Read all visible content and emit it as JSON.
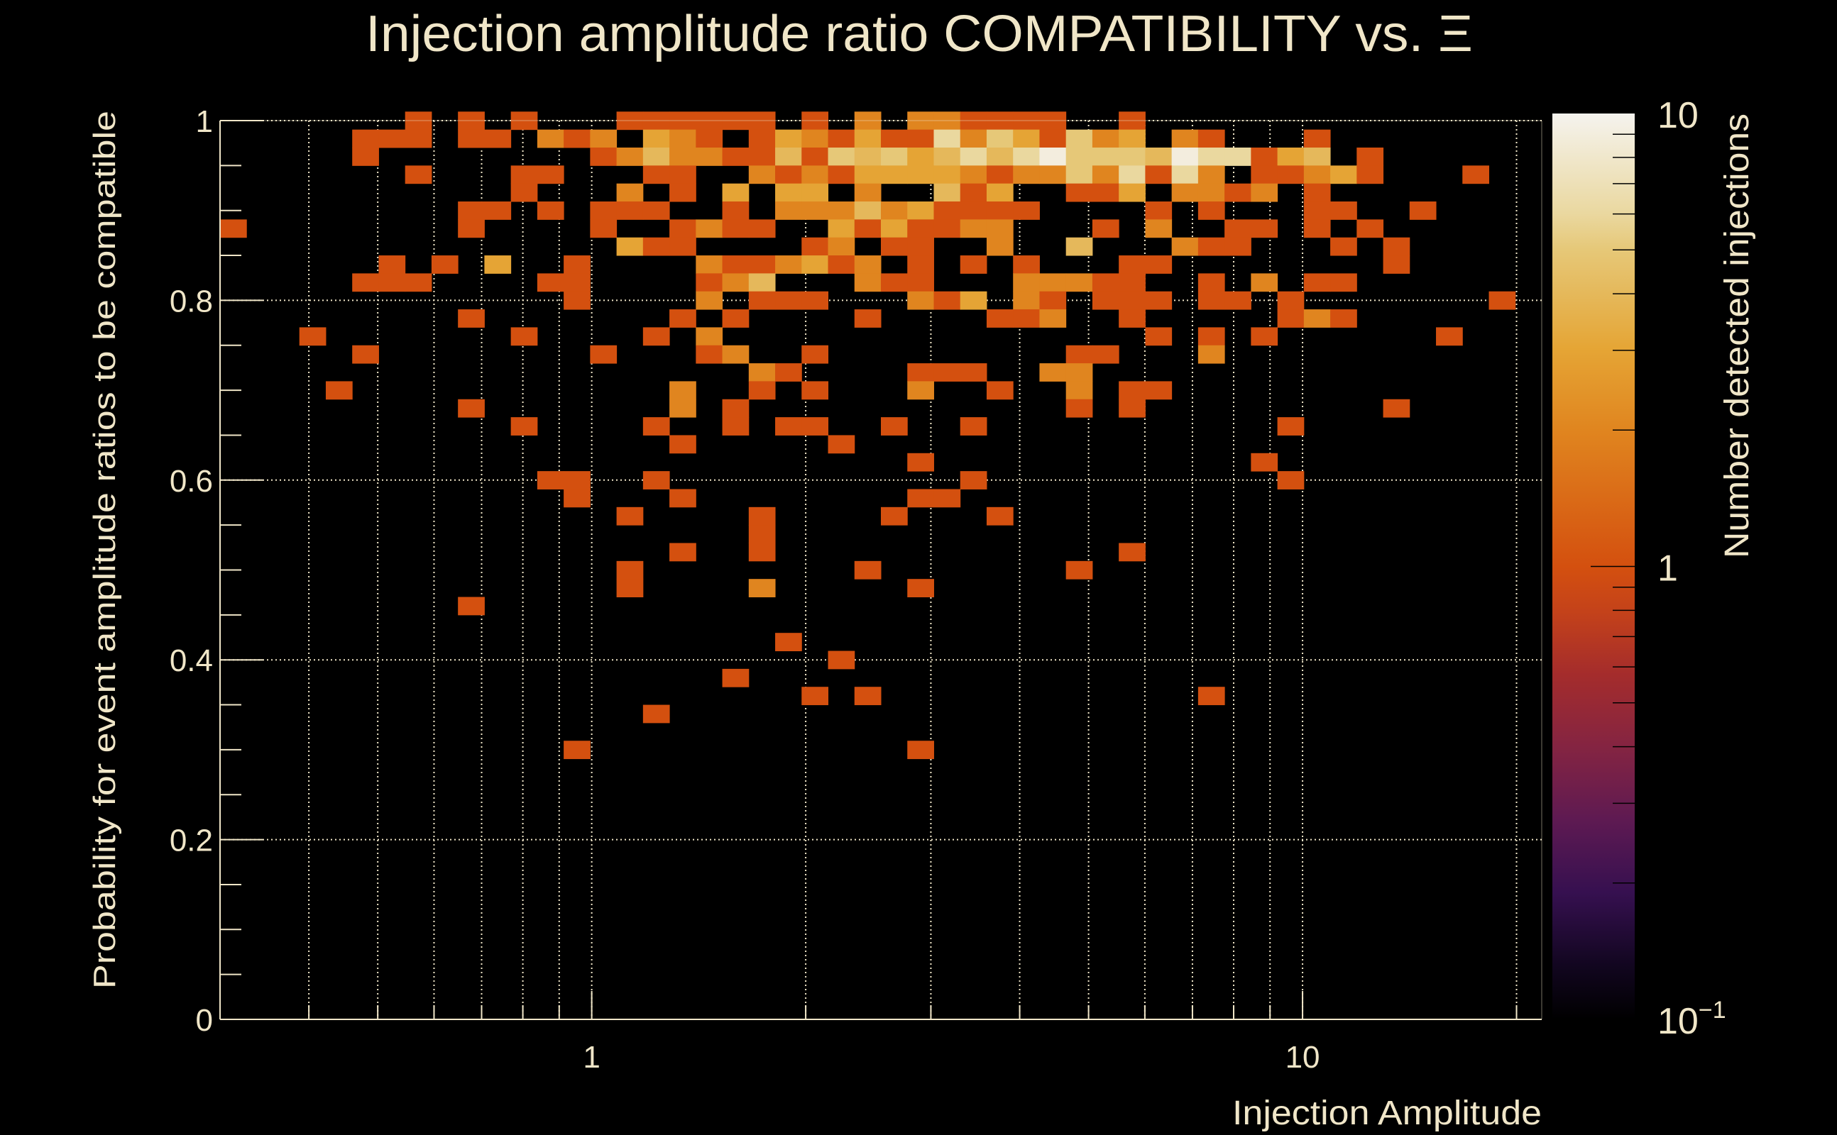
{
  "chart_data": {
    "type": "heatmap",
    "title": "Injection amplitude ratio COMPATIBILITY vs.  Ξ",
    "xlabel": "Injection Amplitude",
    "ylabel": "Probability for event amplitude ratios to be compatible",
    "zlabel": "Number detected injections",
    "x_scale": "log",
    "xlim": [
      0.3,
      21.7
    ],
    "ylim": [
      0,
      1
    ],
    "zlim": [
      0.1,
      10
    ],
    "z_scale": "log",
    "grid": true,
    "x_bins": 50,
    "y_bin_width": 0.02,
    "y_first_bin_center": 1.0,
    "x_tick_labels": [
      {
        "value": 1,
        "label": "1"
      },
      {
        "value": 10,
        "label": "10"
      }
    ],
    "y_tick_labels": [
      {
        "value": 0,
        "label": "0"
      },
      {
        "value": 0.2,
        "label": "0.2"
      },
      {
        "value": 0.4,
        "label": "0.4"
      },
      {
        "value": 0.6,
        "label": "0.6"
      },
      {
        "value": 0.8,
        "label": "0.8"
      },
      {
        "value": 1,
        "label": "1"
      }
    ],
    "z_tick_labels": [
      {
        "value": 10,
        "base": "10",
        "exp": ""
      },
      {
        "value": 1,
        "base": "1",
        "exp": ""
      },
      {
        "value": 0.1,
        "base": "10",
        "exp": "−1"
      }
    ],
    "colormap": [
      {
        "t": 0.0,
        "color": "#000000"
      },
      {
        "t": 0.06,
        "color": "#120620"
      },
      {
        "t": 0.14,
        "color": "#361050"
      },
      {
        "t": 0.22,
        "color": "#5e1a52"
      },
      {
        "t": 0.3,
        "color": "#842442"
      },
      {
        "t": 0.38,
        "color": "#a42c2c"
      },
      {
        "t": 0.45,
        "color": "#c4421a"
      },
      {
        "t": 0.5,
        "color": "#d4500f"
      },
      {
        "t": 0.65,
        "color": "#e0851f"
      },
      {
        "t": 0.74,
        "color": "#e5a535"
      },
      {
        "t": 0.8,
        "color": "#e5b85a"
      },
      {
        "t": 0.85,
        "color": "#e6c878"
      },
      {
        "t": 0.89,
        "color": "#ead8a0"
      },
      {
        "t": 1.0,
        "color": "#f5f3ee"
      }
    ],
    "rows_from_top": [
      [
        [
          7,
          1
        ],
        [
          9,
          1
        ],
        [
          11,
          1
        ],
        [
          15,
          1
        ],
        [
          16,
          1
        ],
        [
          17,
          1
        ],
        [
          18,
          1
        ],
        [
          19,
          1
        ],
        [
          20,
          1
        ],
        [
          22,
          1
        ],
        [
          24,
          2
        ],
        [
          26,
          2
        ],
        [
          27,
          2
        ],
        [
          28,
          1
        ],
        [
          29,
          1
        ],
        [
          30,
          1
        ],
        [
          31,
          1
        ],
        [
          34,
          1
        ]
      ],
      [
        [
          5,
          1
        ],
        [
          6,
          1
        ],
        [
          7,
          1
        ],
        [
          9,
          1
        ],
        [
          10,
          1
        ],
        [
          12,
          2
        ],
        [
          13,
          1
        ],
        [
          14,
          2
        ],
        [
          16,
          3
        ],
        [
          17,
          2
        ],
        [
          18,
          1
        ],
        [
          20,
          1
        ],
        [
          21,
          3
        ],
        [
          22,
          2
        ],
        [
          23,
          1
        ],
        [
          24,
          3
        ],
        [
          25,
          1
        ],
        [
          26,
          1
        ],
        [
          27,
          6
        ],
        [
          28,
          2
        ],
        [
          29,
          5
        ],
        [
          30,
          3
        ],
        [
          31,
          1
        ],
        [
          32,
          5
        ],
        [
          33,
          2
        ],
        [
          34,
          3
        ],
        [
          36,
          2
        ],
        [
          37,
          1
        ],
        [
          41,
          1
        ]
      ],
      [
        [
          5,
          1
        ],
        [
          14,
          1
        ],
        [
          15,
          2
        ],
        [
          16,
          4
        ],
        [
          17,
          2
        ],
        [
          18,
          2
        ],
        [
          19,
          1
        ],
        [
          20,
          1
        ],
        [
          21,
          4
        ],
        [
          22,
          1
        ],
        [
          23,
          5
        ],
        [
          24,
          4
        ],
        [
          25,
          5
        ],
        [
          26,
          3
        ],
        [
          27,
          4
        ],
        [
          28,
          6
        ],
        [
          29,
          4
        ],
        [
          30,
          6
        ],
        [
          31,
          9
        ],
        [
          32,
          5
        ],
        [
          33,
          5
        ],
        [
          34,
          5
        ],
        [
          35,
          4
        ],
        [
          36,
          9
        ],
        [
          37,
          6
        ],
        [
          38,
          6
        ],
        [
          39,
          1
        ],
        [
          40,
          3
        ],
        [
          41,
          4
        ],
        [
          43,
          1
        ]
      ],
      [
        [
          7,
          1
        ],
        [
          11,
          1
        ],
        [
          12,
          1
        ],
        [
          16,
          1
        ],
        [
          17,
          1
        ],
        [
          20,
          2
        ],
        [
          21,
          1
        ],
        [
          22,
          2
        ],
        [
          23,
          1
        ],
        [
          24,
          3
        ],
        [
          25,
          3
        ],
        [
          26,
          3
        ],
        [
          27,
          3
        ],
        [
          28,
          2
        ],
        [
          29,
          1
        ],
        [
          30,
          2
        ],
        [
          31,
          2
        ],
        [
          32,
          5
        ],
        [
          33,
          2
        ],
        [
          34,
          6
        ],
        [
          35,
          1
        ],
        [
          36,
          6
        ],
        [
          37,
          2
        ],
        [
          39,
          1
        ],
        [
          40,
          1
        ],
        [
          41,
          2
        ],
        [
          42,
          3
        ],
        [
          43,
          1
        ],
        [
          47,
          1
        ]
      ],
      [
        [
          11,
          1
        ],
        [
          15,
          2
        ],
        [
          17,
          1
        ],
        [
          19,
          3
        ],
        [
          21,
          3
        ],
        [
          22,
          3
        ],
        [
          24,
          2
        ],
        [
          27,
          4
        ],
        [
          28,
          1
        ],
        [
          29,
          3
        ],
        [
          32,
          1
        ],
        [
          33,
          1
        ],
        [
          34,
          3
        ],
        [
          36,
          2
        ],
        [
          37,
          2
        ],
        [
          38,
          1
        ],
        [
          39,
          2
        ],
        [
          41,
          1
        ]
      ],
      [
        [
          9,
          1
        ],
        [
          10,
          1
        ],
        [
          12,
          1
        ],
        [
          14,
          1
        ],
        [
          15,
          1
        ],
        [
          16,
          1
        ],
        [
          19,
          1
        ],
        [
          21,
          2
        ],
        [
          22,
          2
        ],
        [
          23,
          2
        ],
        [
          24,
          4
        ],
        [
          25,
          2
        ],
        [
          26,
          3
        ],
        [
          27,
          1
        ],
        [
          28,
          1
        ],
        [
          29,
          1
        ],
        [
          30,
          1
        ],
        [
          35,
          1
        ],
        [
          37,
          1
        ],
        [
          41,
          1
        ],
        [
          42,
          1
        ],
        [
          45,
          1
        ]
      ],
      [
        [
          0,
          1
        ],
        [
          9,
          1
        ],
        [
          14,
          1
        ],
        [
          17,
          1
        ],
        [
          18,
          2
        ],
        [
          19,
          1
        ],
        [
          20,
          1
        ],
        [
          23,
          3
        ],
        [
          24,
          1
        ],
        [
          25,
          3
        ],
        [
          26,
          1
        ],
        [
          27,
          1
        ],
        [
          28,
          2
        ],
        [
          29,
          2
        ],
        [
          33,
          1
        ],
        [
          35,
          2
        ],
        [
          38,
          1
        ],
        [
          39,
          1
        ],
        [
          41,
          1
        ],
        [
          43,
          1
        ]
      ],
      [
        [
          15,
          3
        ],
        [
          16,
          1
        ],
        [
          17,
          1
        ],
        [
          22,
          1
        ],
        [
          23,
          2
        ],
        [
          25,
          1
        ],
        [
          26,
          1
        ],
        [
          29,
          2
        ],
        [
          32,
          4
        ],
        [
          36,
          2
        ],
        [
          37,
          1
        ],
        [
          38,
          1
        ],
        [
          42,
          1
        ],
        [
          44,
          1
        ]
      ],
      [
        [
          6,
          1
        ],
        [
          8,
          1
        ],
        [
          10,
          3
        ],
        [
          13,
          1
        ],
        [
          18,
          2
        ],
        [
          19,
          1
        ],
        [
          20,
          1
        ],
        [
          21,
          2
        ],
        [
          22,
          3
        ],
        [
          23,
          1
        ],
        [
          24,
          2
        ],
        [
          26,
          1
        ],
        [
          28,
          1
        ],
        [
          30,
          1
        ],
        [
          34,
          1
        ],
        [
          35,
          1
        ],
        [
          44,
          1
        ]
      ],
      [
        [
          5,
          1
        ],
        [
          6,
          1
        ],
        [
          7,
          1
        ],
        [
          12,
          1
        ],
        [
          13,
          1
        ],
        [
          18,
          1
        ],
        [
          19,
          2
        ],
        [
          20,
          4
        ],
        [
          24,
          2
        ],
        [
          25,
          1
        ],
        [
          26,
          1
        ],
        [
          30,
          2
        ],
        [
          31,
          2
        ],
        [
          32,
          2
        ],
        [
          33,
          1
        ],
        [
          34,
          1
        ],
        [
          37,
          1
        ],
        [
          39,
          2
        ],
        [
          41,
          1
        ],
        [
          42,
          1
        ]
      ],
      [
        [
          13,
          1
        ],
        [
          18,
          2
        ],
        [
          20,
          1
        ],
        [
          21,
          1
        ],
        [
          22,
          1
        ],
        [
          26,
          2
        ],
        [
          27,
          1
        ],
        [
          28,
          3
        ],
        [
          30,
          2
        ],
        [
          31,
          1
        ],
        [
          33,
          1
        ],
        [
          34,
          1
        ],
        [
          35,
          1
        ],
        [
          37,
          1
        ],
        [
          38,
          1
        ],
        [
          40,
          1
        ],
        [
          48,
          1
        ]
      ],
      [
        [
          9,
          1
        ],
        [
          17,
          1
        ],
        [
          19,
          1
        ],
        [
          24,
          1
        ],
        [
          29,
          1
        ],
        [
          30,
          1
        ],
        [
          31,
          2
        ],
        [
          34,
          1
        ],
        [
          40,
          1
        ],
        [
          41,
          2
        ],
        [
          42,
          1
        ]
      ],
      [
        [
          3,
          1
        ],
        [
          11,
          1
        ],
        [
          16,
          1
        ],
        [
          18,
          2
        ],
        [
          35,
          1
        ],
        [
          37,
          1
        ],
        [
          39,
          1
        ],
        [
          46,
          1
        ]
      ],
      [
        [
          5,
          1
        ],
        [
          14,
          1
        ],
        [
          18,
          1
        ],
        [
          19,
          2
        ],
        [
          22,
          1
        ],
        [
          32,
          1
        ],
        [
          33,
          1
        ],
        [
          37,
          2
        ]
      ],
      [
        [
          20,
          2
        ],
        [
          21,
          1
        ],
        [
          26,
          1
        ],
        [
          27,
          1
        ],
        [
          28,
          1
        ],
        [
          31,
          2
        ],
        [
          32,
          2
        ]
      ],
      [
        [
          4,
          1
        ],
        [
          17,
          2
        ],
        [
          20,
          1
        ],
        [
          22,
          1
        ],
        [
          26,
          2
        ],
        [
          29,
          1
        ],
        [
          32,
          2
        ],
        [
          34,
          1
        ],
        [
          35,
          1
        ]
      ],
      [
        [
          9,
          1
        ],
        [
          17,
          2
        ],
        [
          19,
          1
        ],
        [
          32,
          1
        ],
        [
          34,
          1
        ],
        [
          44,
          1
        ]
      ],
      [
        [
          11,
          1
        ],
        [
          16,
          1
        ],
        [
          19,
          1
        ],
        [
          21,
          1
        ],
        [
          22,
          1
        ],
        [
          25,
          1
        ],
        [
          28,
          1
        ],
        [
          40,
          1
        ]
      ],
      [
        [
          17,
          1
        ],
        [
          23,
          1
        ]
      ],
      [
        [
          26,
          1
        ],
        [
          39,
          1
        ]
      ],
      [
        [
          12,
          1
        ],
        [
          13,
          1
        ],
        [
          16,
          1
        ],
        [
          28,
          1
        ],
        [
          40,
          1
        ]
      ],
      [
        [
          13,
          1
        ],
        [
          17,
          1
        ],
        [
          26,
          1
        ],
        [
          27,
          1
        ]
      ],
      [
        [
          15,
          1
        ],
        [
          20,
          1
        ],
        [
          25,
          1
        ],
        [
          29,
          1
        ]
      ],
      [
        [
          20,
          1
        ]
      ],
      [
        [
          17,
          1
        ],
        [
          20,
          1
        ],
        [
          34,
          1
        ]
      ],
      [
        [
          15,
          1
        ],
        [
          24,
          1
        ],
        [
          32,
          1
        ]
      ],
      [
        [
          15,
          1
        ],
        [
          20,
          2
        ],
        [
          26,
          1
        ]
      ],
      [
        [
          9,
          1
        ]
      ],
      [],
      [
        [
          21,
          1
        ]
      ],
      [
        [
          23,
          1
        ]
      ],
      [
        [
          19,
          1
        ]
      ],
      [
        [
          22,
          1
        ],
        [
          24,
          1
        ],
        [
          37,
          1
        ]
      ],
      [
        [
          16,
          1
        ]
      ],
      [],
      [
        [
          13,
          1
        ],
        [
          26,
          1
        ]
      ]
    ]
  }
}
